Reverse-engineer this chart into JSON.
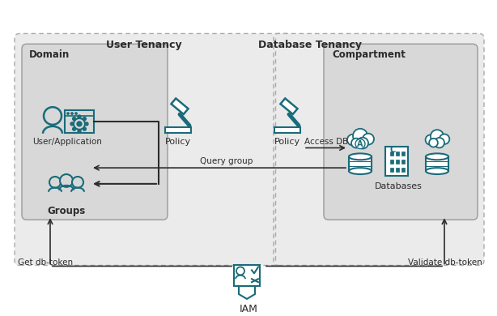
{
  "bg_color": "#ffffff",
  "teal_color": "#1a6b7a",
  "dark_color": "#2c2c2c",
  "arrow_color": "#333333",
  "iam_label": "IAM",
  "get_token_label": "Get db-token",
  "validate_token_label": "Validate db-token",
  "user_tenancy_label": "User Tenancy",
  "db_tenancy_label": "Database Tenancy",
  "domain_label": "Domain",
  "compartment_label": "Compartment",
  "user_app_label": "User/Application",
  "groups_label": "Groups",
  "policy_label": "Policy",
  "databases_label": "Databases",
  "access_db_label": "Access DB",
  "query_group_label": "Query group"
}
